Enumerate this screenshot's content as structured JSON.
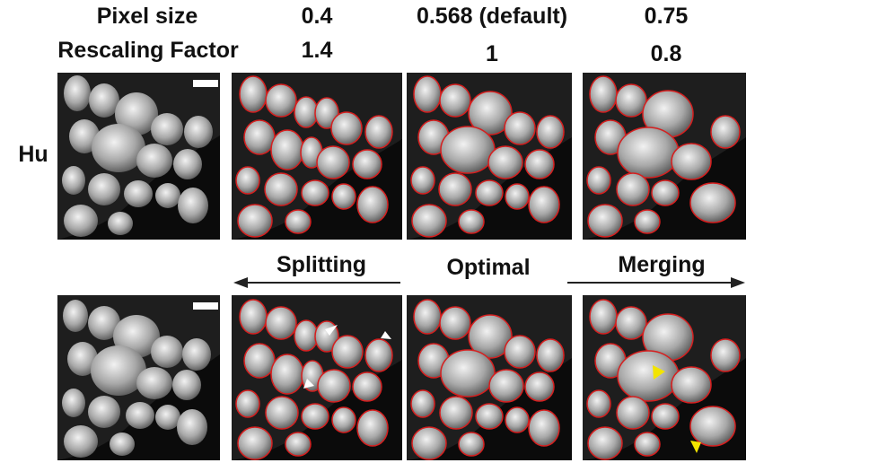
{
  "header": {
    "row1": {
      "label": "Pixel size",
      "values": [
        "0.4",
        "0.568 (default)",
        "0.75"
      ]
    },
    "row2": {
      "label": "Rescaling Factor",
      "values": [
        "1.4",
        "1",
        "0.8"
      ]
    }
  },
  "side_label": "Hu",
  "mid_labels": {
    "left": "Splitting",
    "center": "Optimal",
    "right": "Merging"
  },
  "colors": {
    "outline": "#d61f1f",
    "splitting_arrow": "#ffffff",
    "merging_arrow": "#f3e400",
    "panel_background": "#0b0b0b"
  },
  "panels": [
    {
      "label": "Hu-raw-top",
      "outlines": false
    },
    {
      "label": "Hu-0.4-top",
      "outlines": true
    },
    {
      "label": "Hu-0.568-top",
      "outlines": true
    },
    {
      "label": "Hu-0.75-top",
      "outlines": true
    },
    {
      "label": "Hu-raw-bottom",
      "outlines": false
    },
    {
      "label": "Hu-0.4-bottom",
      "outlines": true
    },
    {
      "label": "Hu-0.568-bottom",
      "outlines": true
    },
    {
      "label": "Hu-0.75-bottom",
      "outlines": true
    }
  ]
}
